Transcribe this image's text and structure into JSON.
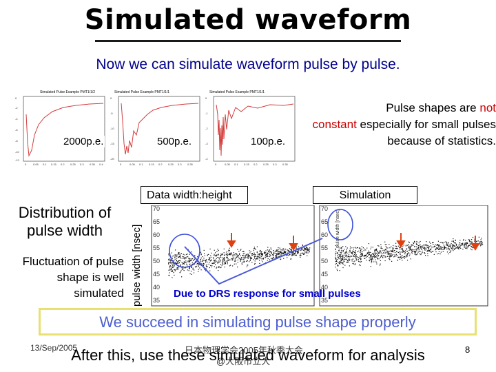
{
  "slide": {
    "title": "Simulated waveform",
    "subtitle": "Now we can simulate waveform pulse by pulse.",
    "thumbnails": [
      {
        "caption": "Simulated Pulse Example PMT1/1/2",
        "pe_label": "2000p.e.",
        "trace_color": "#d23c3c"
      },
      {
        "caption": "Simulated Pulse Example PMT1/1/1",
        "pe_label": "500p.e.",
        "trace_color": "#d23c3c"
      },
      {
        "caption": "Simulated Pulse Example PMT1/1/1",
        "pe_label": "100p.e.",
        "trace_color": "#d23c3c"
      }
    ],
    "note": {
      "text_before": "Pulse shapes are ",
      "highlight_1": "not",
      "highlight_2": "constant",
      "text_after": " especially for small pulses because of statistics.",
      "highlight_color": "#cc0000"
    },
    "left_heading": "Distribution of pulse width",
    "left_body": "Fluctuation of pulse shape is well simulated",
    "panels": {
      "data_label": "Data   width:height",
      "sim_label": "Simulation",
      "y_axis_label": "pulse width [nsec]",
      "sim_inner_axis_label": "pulse width [nsec]",
      "y_ticks": [
        "70",
        "65",
        "60",
        "55",
        "50",
        "45",
        "40",
        "35"
      ],
      "annotation": "Due to DRS response for small pulses",
      "annotation_color": "#0000cc",
      "arrow_color": "#e04010",
      "circle_color": "#3c50dc"
    },
    "banner": "We succeed in simulating pulse shape properly",
    "footer": {
      "date": "13/Sep/2005",
      "conference": "日本物理学会2005年秋季大会",
      "venue": "@大阪市立大",
      "closing": "After this, use these simulated waveform for analysis",
      "page": "8"
    }
  }
}
